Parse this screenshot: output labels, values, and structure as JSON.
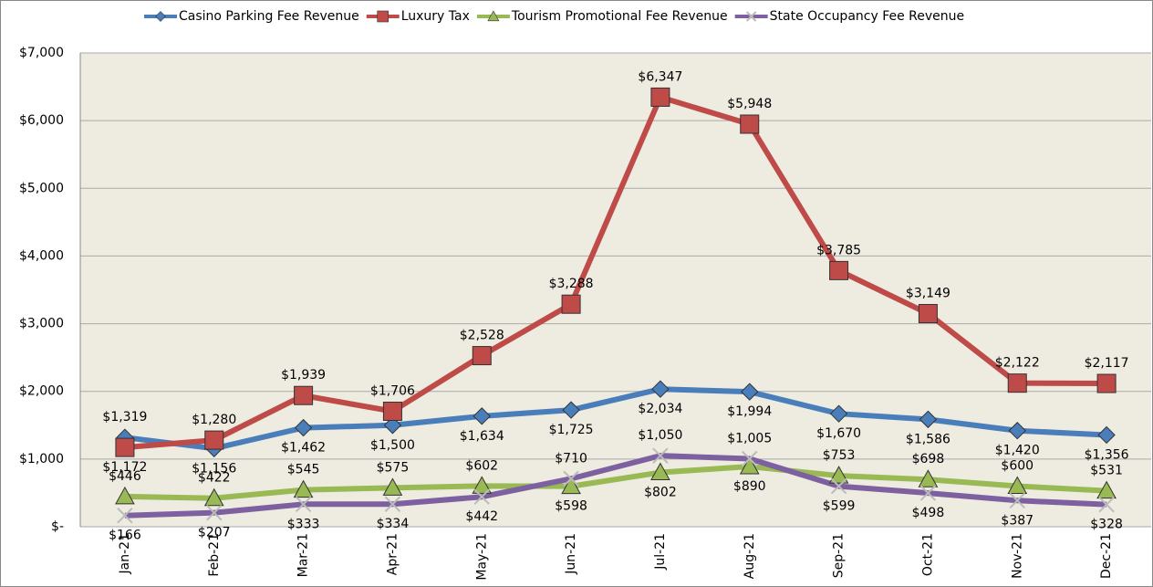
{
  "chart_data": {
    "type": "line",
    "categories": [
      "Jan-21",
      "Feb-21",
      "Mar-21",
      "Apr-21",
      "May-21",
      "Jun-21",
      "Jul-21",
      "Aug-21",
      "Sep-21",
      "Oct-21",
      "Nov-21",
      "Dec-21"
    ],
    "series": [
      {
        "name": "Casino Parking Fee Revenue",
        "color": "#4a7ebb",
        "marker": "diamond",
        "values": [
          1319,
          1156,
          1462,
          1500,
          1634,
          1725,
          2034,
          1994,
          1670,
          1586,
          1420,
          1356
        ],
        "value_labels": [
          "$1,319",
          "$1,156",
          "$1,462",
          "$1,500",
          "$1,634",
          "$1,725",
          "$2,034",
          "$1,994",
          "$1,670",
          "$1,586",
          "$1,420",
          "$1,356"
        ]
      },
      {
        "name": "Luxury Tax",
        "color": "#be4b48",
        "marker": "square",
        "values": [
          1172,
          1280,
          1939,
          1706,
          2528,
          3288,
          6347,
          5948,
          3785,
          3149,
          2122,
          2117
        ],
        "value_labels": [
          "$1,172",
          "$1,280",
          "$1,939",
          "$1,706",
          "$2,528",
          "$3,288",
          "$6,347",
          "$5,948",
          "$3,785",
          "$3,149",
          "$2,122",
          "$2,117"
        ]
      },
      {
        "name": "Tourism Promotional Fee Revenue",
        "color": "#98b954",
        "marker": "triangle",
        "values": [
          446,
          422,
          545,
          575,
          602,
          598,
          802,
          890,
          753,
          698,
          600,
          531
        ],
        "value_labels": [
          "$446",
          "$422",
          "$545",
          "$575",
          "$602",
          "$598",
          "$802",
          "$890",
          "$753",
          "$698",
          "$600",
          "$531"
        ]
      },
      {
        "name": "State Occupancy Fee Revenue",
        "color": "#7d60a0",
        "marker": "x",
        "values": [
          166,
          207,
          333,
          334,
          442,
          710,
          1050,
          1005,
          599,
          498,
          387,
          328
        ],
        "value_labels": [
          "$166",
          "$207",
          "$333",
          "$334",
          "$442",
          "$710",
          "$1,050",
          "$1,005",
          "$599",
          "$498",
          "$387",
          "$328"
        ]
      }
    ],
    "ylim": [
      0,
      7000
    ],
    "yticks": [
      {
        "value": 0,
        "label": "$-"
      },
      {
        "value": 1000,
        "label": "$1,000"
      },
      {
        "value": 2000,
        "label": "$2,000"
      },
      {
        "value": 3000,
        "label": "$3,000"
      },
      {
        "value": 4000,
        "label": "$4,000"
      },
      {
        "value": 5000,
        "label": "$5,000"
      },
      {
        "value": 6000,
        "label": "$6,000"
      },
      {
        "value": 7000,
        "label": "$7,000"
      }
    ],
    "grid": true,
    "legend": "top"
  }
}
